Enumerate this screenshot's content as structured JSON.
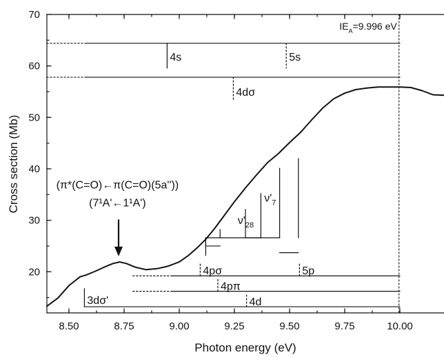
{
  "chart_data": {
    "type": "line",
    "title": "",
    "xlabel": "Photon energy (eV)",
    "ylabel": "Cross section (Mb)",
    "xlim": [
      8.4,
      10.2
    ],
    "ylim": [
      12,
      70
    ],
    "x_ticks": [
      "8.50",
      "8.75",
      "9.00",
      "9.25",
      "9.50",
      "9.75",
      "10.00"
    ],
    "y_ticks": [
      "20",
      "30",
      "40",
      "50",
      "60",
      "70"
    ],
    "grid": false,
    "legend": "none",
    "series": [
      {
        "x": [
          8.4,
          8.45,
          8.5,
          8.55,
          8.58,
          8.62,
          8.66,
          8.7,
          8.73,
          8.76,
          8.8,
          8.85,
          8.9,
          8.95,
          9.0,
          9.04,
          9.08,
          9.12,
          9.16,
          9.2,
          9.25,
          9.3,
          9.35,
          9.4,
          9.45,
          9.5,
          9.55,
          9.6,
          9.65,
          9.7,
          9.75,
          9.8,
          9.85,
          9.9,
          9.95,
          10.0,
          10.05,
          10.1,
          10.15,
          10.2
        ],
        "y": [
          13.3,
          14.9,
          17.3,
          19.0,
          19.4,
          20.1,
          20.9,
          21.6,
          21.9,
          21.6,
          20.9,
          20.4,
          20.6,
          21.1,
          21.9,
          23.1,
          24.6,
          26.3,
          28.4,
          30.7,
          33.6,
          36.3,
          38.8,
          41.2,
          43.0,
          45.1,
          47.1,
          49.5,
          51.8,
          53.6,
          54.7,
          55.4,
          55.7,
          55.9,
          55.9,
          55.9,
          55.8,
          55.2,
          54.4,
          54.3
        ]
      }
    ],
    "reference_line": {
      "x": 9.996,
      "label": "IE",
      "label_subscript": "A",
      "label_value": "=9.996 eV"
    },
    "rydberg_series": [
      {
        "name": "s",
        "y": 64.4,
        "dotted_from": 8.4,
        "solid_from": 8.58,
        "to": 10.0,
        "marks": [
          {
            "x": 8.945,
            "label": "4s"
          },
          {
            "x": 9.485,
            "label": "5s"
          }
        ]
      },
      {
        "name": "d-sigma",
        "y": 57.8,
        "dotted_from": 8.4,
        "solid_from": 8.58,
        "to": 10.0,
        "marks": [
          {
            "x": 9.245,
            "label": "4dσ"
          }
        ]
      },
      {
        "name": "p-sigma",
        "y": 19.2,
        "dotted_from": 8.79,
        "solid_from": 8.97,
        "to": 10.0,
        "marks": [
          {
            "x": 9.095,
            "label": "4pσ"
          },
          {
            "x": 9.545,
            "label": "5p"
          }
        ]
      },
      {
        "name": "p-pi",
        "y": 16.2,
        "dotted_from": 8.79,
        "solid_from": 8.97,
        "to": 10.0,
        "marks": [
          {
            "x": 9.175,
            "label": "4pπ"
          }
        ]
      },
      {
        "name": "d",
        "y": 13.2,
        "dotted_from": 8.57,
        "solid_from": 8.57,
        "to": 10.0,
        "cap": {
          "x": 8.57,
          "y_top": 16.7,
          "label": "3dσ'"
        },
        "marks": [
          {
            "x": 9.305,
            "label": "4d"
          }
        ]
      }
    ],
    "vibrational_progression": {
      "baseline_y": 23.2,
      "main_y": 26.6,
      "main_left": 9.12,
      "main_right": 9.455,
      "main_label_x": 9.305,
      "ticks": [
        {
          "x": 9.12,
          "top": 25.0
        },
        {
          "x": 9.185,
          "top": 28.2
        },
        {
          "x": 9.3,
          "top": 32.1
        },
        {
          "x": 9.37,
          "top": 35.2
        },
        {
          "x": 9.455,
          "top": 40.1
        },
        {
          "x": 9.54,
          "top": 42.0
        }
      ],
      "spacers": [
        {
          "from": 9.12,
          "to": 9.185,
          "y": 25.0
        },
        {
          "from": 9.3,
          "to": 9.37,
          "y": 26.6
        },
        {
          "from": 9.455,
          "to": 9.54,
          "y": 23.7
        }
      ],
      "labels": [
        {
          "text": "ν'",
          "sub": "28",
          "x": 9.265,
          "y": 29.3
        },
        {
          "text": "ν'",
          "sub": "7",
          "x": 9.385,
          "y": 33.6
        }
      ]
    },
    "annotation": {
      "line1": "(π*(C=O)←π(C=O)(5a''))",
      "line2": "(7¹A'←1¹A')",
      "arrow_x": 8.725,
      "arrow_y_top": 30.0,
      "arrow_y_bottom": 23.0,
      "label_x": 8.72,
      "label_y1": 36.2,
      "label_y2": 32.7
    }
  }
}
